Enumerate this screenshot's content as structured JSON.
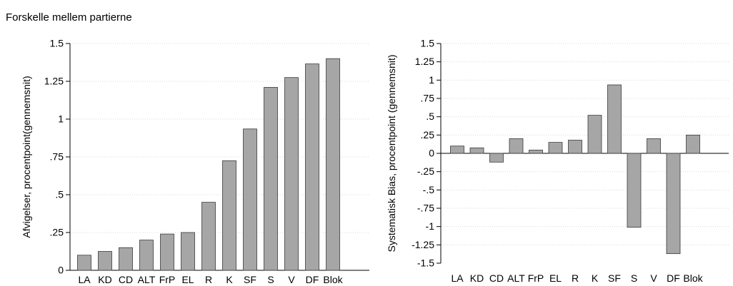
{
  "title": "Forskelle mellem partierne",
  "colors": {
    "bar": "#a6a6a6",
    "bar_stroke": "#3a3a3a",
    "grid": "#d9d9d9",
    "axis": "#000000"
  },
  "chart_data": [
    {
      "type": "bar",
      "ylabel": "Afvigelser, procentpoint(gennemsnit)",
      "xlabel": "",
      "ylim": [
        0,
        1.5
      ],
      "yticks": [
        0,
        0.25,
        0.5,
        0.75,
        1,
        1.25,
        1.5
      ],
      "ytick_labels": [
        "0",
        ".25",
        ".5",
        ".75",
        "1",
        "1.25",
        "1.5"
      ],
      "grid": true,
      "categories": [
        "LA",
        "KD",
        "CD",
        "ALT",
        "FrP",
        "EL",
        "R",
        "K",
        "SF",
        "S",
        "V",
        "DF",
        "Blok"
      ],
      "values": [
        0.1,
        0.125,
        0.15,
        0.2,
        0.24,
        0.25,
        0.45,
        0.725,
        0.935,
        1.21,
        1.275,
        1.365,
        1.4
      ]
    },
    {
      "type": "bar",
      "ylabel": "Systematisk Bias, procentpoint (gennemsnit)",
      "xlabel": "",
      "ylim": [
        -1.5,
        1.5
      ],
      "yticks": [
        -1.5,
        -1.25,
        -1,
        -0.75,
        -0.5,
        -0.25,
        0,
        0.25,
        0.5,
        0.75,
        1,
        1.25,
        1.5
      ],
      "ytick_labels": [
        "-1.5",
        "-1.25",
        "-1",
        "-.75",
        "-.5",
        "-.25",
        "0",
        ".25",
        ".5",
        ".75",
        "1",
        "1.25",
        "1.5"
      ],
      "grid": true,
      "categories": [
        "LA",
        "KD",
        "CD",
        "ALT",
        "FrP",
        "EL",
        "R",
        "K",
        "SF",
        "S",
        "V",
        "DF",
        "Blok"
      ],
      "values": [
        0.1,
        0.075,
        -0.12,
        0.2,
        0.045,
        0.15,
        0.18,
        0.52,
        0.935,
        -1.01,
        0.2,
        -1.37,
        0.25
      ]
    }
  ]
}
